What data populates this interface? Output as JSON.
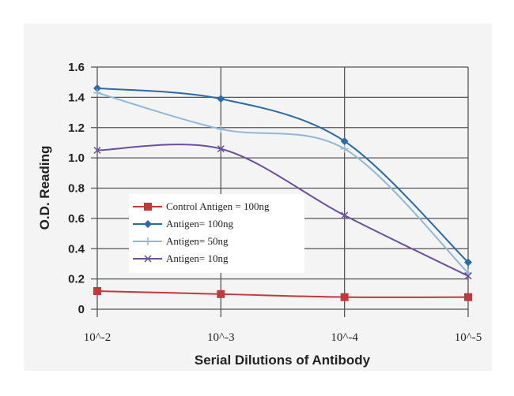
{
  "chart_data": {
    "type": "line",
    "title": "",
    "xlabel": "Serial Dilutions of Antibody",
    "ylabel": "O.D. Reading",
    "categories": [
      "10^-2",
      "10^-3",
      "10^-4",
      "10^-5"
    ],
    "yticks": [
      "0",
      "0.2",
      "0.4",
      "0.6",
      "0.8",
      "1.0",
      "1.2",
      "1.4",
      "1.6"
    ],
    "ylim": [
      0,
      1.6
    ],
    "grid": true,
    "legend_position": "center-left",
    "series": [
      {
        "name": "Control Antigen = 100ng",
        "color": "#c0393b",
        "marker": "square",
        "values": [
          0.12,
          0.1,
          0.08,
          0.08
        ]
      },
      {
        "name": "Antigen= 100ng",
        "color": "#2a6aa8",
        "marker": "diamond",
        "values": [
          1.46,
          1.39,
          1.11,
          0.31
        ]
      },
      {
        "name": "Antigen= 50ng",
        "color": "#8fb8dc",
        "marker": "plus",
        "values": [
          1.43,
          1.19,
          1.06,
          0.24
        ]
      },
      {
        "name": "Antigen= 10ng",
        "color": "#6a4fa0",
        "marker": "x",
        "values": [
          1.05,
          1.06,
          0.62,
          0.22
        ]
      }
    ]
  }
}
